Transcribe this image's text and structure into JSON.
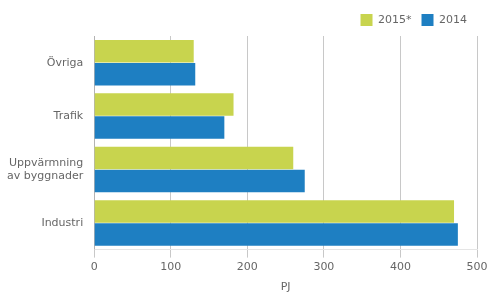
{
  "chart_data": {
    "type": "bar",
    "orientation": "horizontal",
    "categories": [
      "Industri",
      "Uppvärmning\nav byggnader",
      "Trafik",
      "Övriga"
    ],
    "series": [
      {
        "name": "2015*",
        "color": "#c8d44e",
        "values": [
          470,
          260,
          182,
          130
        ]
      },
      {
        "name": "2014",
        "color": "#1e7fc2",
        "values": [
          475,
          275,
          170,
          132
        ]
      }
    ],
    "xlabel": "PJ",
    "xlim": [
      0,
      500
    ],
    "xticks": [
      0,
      100,
      200,
      300,
      400,
      500
    ],
    "grid": true,
    "legend": "upper right"
  }
}
